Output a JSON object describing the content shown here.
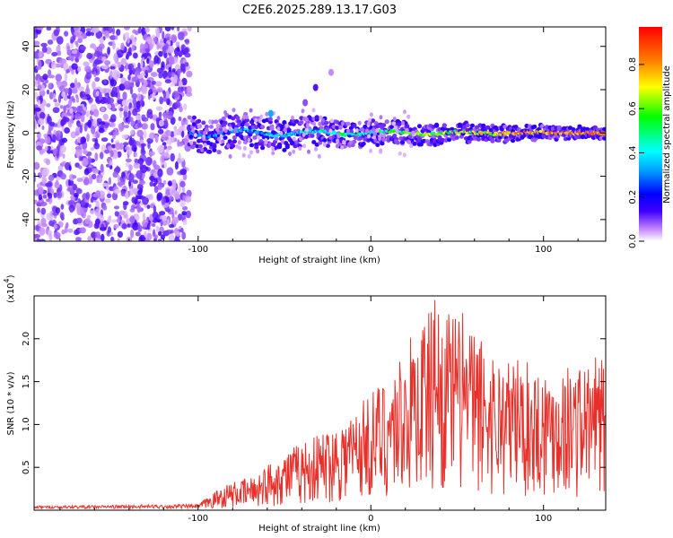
{
  "title": "C2E6.2025.289.13.17.G03",
  "chart_data": [
    {
      "type": "heatmap",
      "name": "spectrogram",
      "title": "C2E6.2025.289.13.17.G03",
      "xlabel": "Height of straight line (km)",
      "ylabel": "Frequency (Hz)",
      "xlim": [
        -195,
        136
      ],
      "ylim": [
        -50,
        49
      ],
      "x_ticks": [
        -100,
        0,
        100
      ],
      "y_ticks": [
        -40,
        -20,
        0,
        20,
        40
      ],
      "colorbar": {
        "label": "Normalized spectral amplitude",
        "range": [
          0,
          0.97
        ],
        "ticks": [
          0.0,
          0.2,
          0.4,
          0.6,
          0.8
        ],
        "colors": [
          "#ffffff",
          "#c080ff",
          "#4000ff",
          "#0000ff",
          "#00a0ff",
          "#00ffff",
          "#00ff00",
          "#ffff00",
          "#ff8000",
          "#ff0000"
        ]
      },
      "regions": [
        {
          "x_start": -195,
          "x_end": -105,
          "description": "broadband noise",
          "amplitude": 0.15
        },
        {
          "x_start": -105,
          "x_end": 136,
          "description": "signal trace near 0 Hz",
          "center_hz": 0,
          "peak_amplitude": 0.9
        }
      ],
      "features": [
        {
          "x": -58,
          "y": 9,
          "amplitude": 0.45
        },
        {
          "x": -38,
          "y": 14,
          "amplitude": 0.15
        },
        {
          "x": -32,
          "y": 21,
          "amplitude": 0.2
        },
        {
          "x": -23,
          "y": 28,
          "amplitude": 0.1
        }
      ]
    },
    {
      "type": "line",
      "name": "snr",
      "xlabel": "Height of straight line (km)",
      "ylabel": "SNR (10 * v/v)",
      "y_multiplier_label": "(x10",
      "y_multiplier_exponent": "4",
      "xlim": [
        -195,
        136
      ],
      "ylim": [
        0,
        2.5
      ],
      "x_ticks": [
        -100,
        0,
        100
      ],
      "y_ticks": [
        0.5,
        1.0,
        1.5,
        2.0
      ],
      "color": "#e8302a",
      "envelope": [
        {
          "x": -195,
          "y": 0.05
        },
        {
          "x": -100,
          "y": 0.07
        },
        {
          "x": -85,
          "y": 0.3
        },
        {
          "x": -70,
          "y": 0.38
        },
        {
          "x": -50,
          "y": 0.7
        },
        {
          "x": -30,
          "y": 0.9
        },
        {
          "x": -10,
          "y": 1.2
        },
        {
          "x": 10,
          "y": 1.6
        },
        {
          "x": 25,
          "y": 2.1
        },
        {
          "x": 37,
          "y": 2.45
        },
        {
          "x": 55,
          "y": 2.2
        },
        {
          "x": 75,
          "y": 1.8
        },
        {
          "x": 100,
          "y": 1.7
        },
        {
          "x": 136,
          "y": 1.75
        }
      ],
      "peaks": [
        {
          "x": 30,
          "y": 2.1
        },
        {
          "x": 37,
          "y": 2.45
        },
        {
          "x": 53,
          "y": 2.3
        },
        {
          "x": 64,
          "y": 1.97
        },
        {
          "x": 85,
          "y": 1.75
        },
        {
          "x": 130,
          "y": 1.78
        }
      ]
    }
  ]
}
